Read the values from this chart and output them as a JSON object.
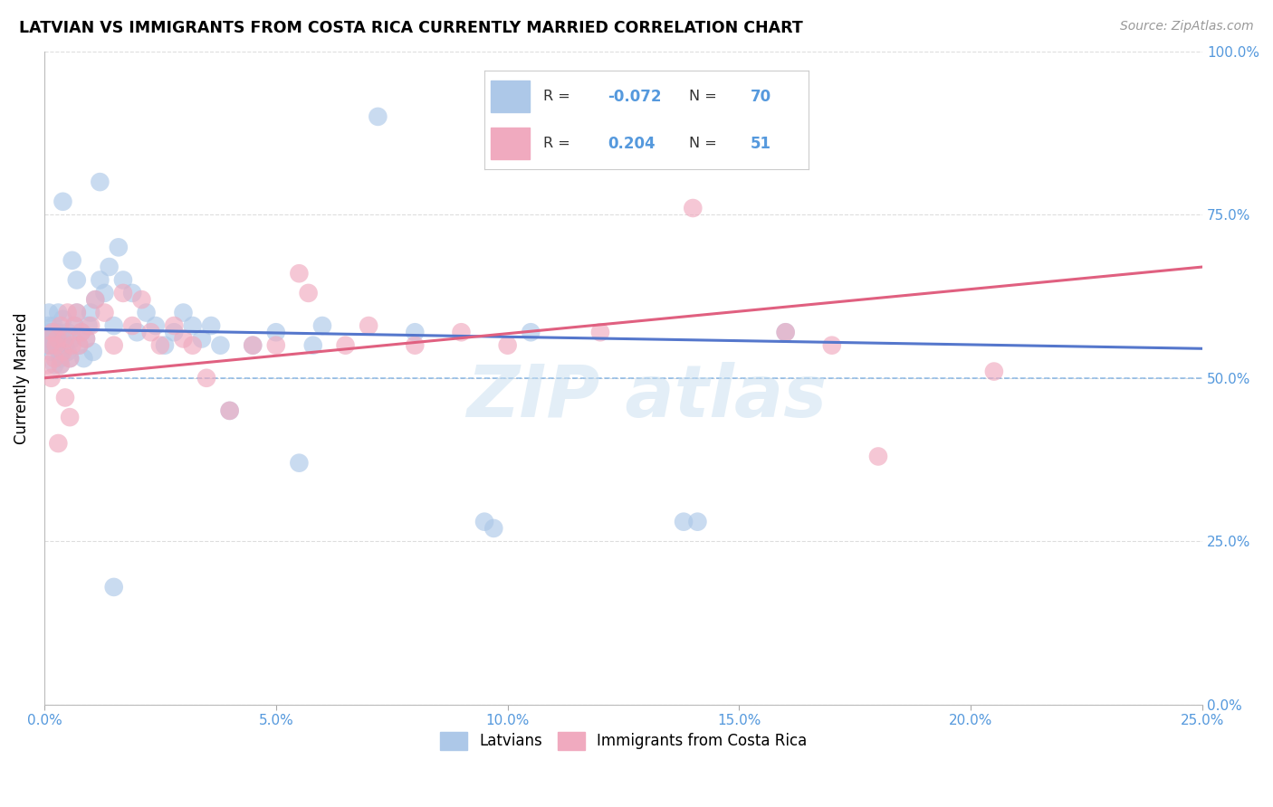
{
  "title": "LATVIAN VS IMMIGRANTS FROM COSTA RICA CURRENTLY MARRIED CORRELATION CHART",
  "source": "Source: ZipAtlas.com",
  "xlim": [
    0.0,
    25.0
  ],
  "ylim": [
    0.0,
    100.0
  ],
  "xtick_vals": [
    0,
    5,
    10,
    15,
    20,
    25
  ],
  "ytick_vals": [
    0,
    25,
    50,
    75,
    100
  ],
  "legend_r_blue": "-0.072",
  "legend_n_blue": "70",
  "legend_r_pink": "0.204",
  "legend_n_pink": "51",
  "blue_color": "#adc8e8",
  "pink_color": "#f0aabf",
  "blue_line_color": "#5577cc",
  "pink_line_color": "#e06080",
  "tick_color": "#5599dd",
  "grid_color": "#dddddd",
  "watermark_color": "#c8dff0",
  "blue_line_y0": 57.5,
  "blue_line_y25": 54.5,
  "pink_line_y0": 50.0,
  "pink_line_y25": 67.0,
  "dashed_line_y": 50.0,
  "blue_x": [
    0.05,
    0.08,
    0.1,
    0.12,
    0.15,
    0.18,
    0.2,
    0.22,
    0.25,
    0.28,
    0.3,
    0.32,
    0.35,
    0.38,
    0.4,
    0.45,
    0.5,
    0.55,
    0.6,
    0.65,
    0.7,
    0.75,
    0.8,
    0.85,
    0.9,
    0.95,
    1.0,
    1.05,
    1.1,
    1.2,
    1.3,
    1.4,
    1.5,
    1.6,
    1.7,
    1.9,
    2.0,
    2.2,
    2.4,
    2.6,
    2.8,
    3.0,
    3.2,
    3.4,
    3.6,
    3.8,
    4.0,
    4.5,
    5.0,
    5.5,
    5.8,
    6.0,
    7.2,
    8.0,
    9.5,
    9.7,
    10.5,
    13.8,
    14.1,
    16.0,
    1.2,
    0.4,
    0.6,
    1.5,
    0.7,
    0.5,
    0.35,
    0.25,
    0.15,
    0.1
  ],
  "blue_y": [
    55,
    58,
    60,
    57,
    54,
    56,
    58,
    52,
    55,
    57,
    60,
    54,
    53,
    56,
    59,
    55,
    57,
    53,
    56,
    58,
    60,
    55,
    57,
    53,
    56,
    58,
    60,
    54,
    62,
    65,
    63,
    67,
    58,
    70,
    65,
    63,
    57,
    60,
    58,
    55,
    57,
    60,
    58,
    56,
    58,
    55,
    45,
    55,
    57,
    37,
    55,
    58,
    90,
    57,
    28,
    27,
    57,
    28,
    28,
    57,
    80,
    77,
    68,
    18,
    65,
    54,
    52,
    57,
    55,
    56
  ],
  "pink_x": [
    0.08,
    0.12,
    0.18,
    0.22,
    0.28,
    0.35,
    0.4,
    0.45,
    0.5,
    0.55,
    0.6,
    0.65,
    0.7,
    0.75,
    0.8,
    0.9,
    1.0,
    1.1,
    1.3,
    1.5,
    1.7,
    1.9,
    2.1,
    2.3,
    2.5,
    2.8,
    3.0,
    3.2,
    3.5,
    4.0,
    4.5,
    5.0,
    5.5,
    5.7,
    6.5,
    7.0,
    8.0,
    9.0,
    10.0,
    12.0,
    14.0,
    16.0,
    17.0,
    18.0,
    20.5,
    0.3,
    0.25,
    0.15,
    0.35,
    0.45,
    0.55
  ],
  "pink_y": [
    52,
    55,
    57,
    53,
    56,
    58,
    54,
    56,
    60,
    53,
    55,
    58,
    60,
    55,
    57,
    56,
    58,
    62,
    60,
    55,
    63,
    58,
    62,
    57,
    55,
    58,
    56,
    55,
    50,
    45,
    55,
    55,
    66,
    63,
    55,
    58,
    55,
    57,
    55,
    57,
    76,
    57,
    55,
    38,
    51,
    40,
    55,
    50,
    52,
    47,
    44
  ]
}
